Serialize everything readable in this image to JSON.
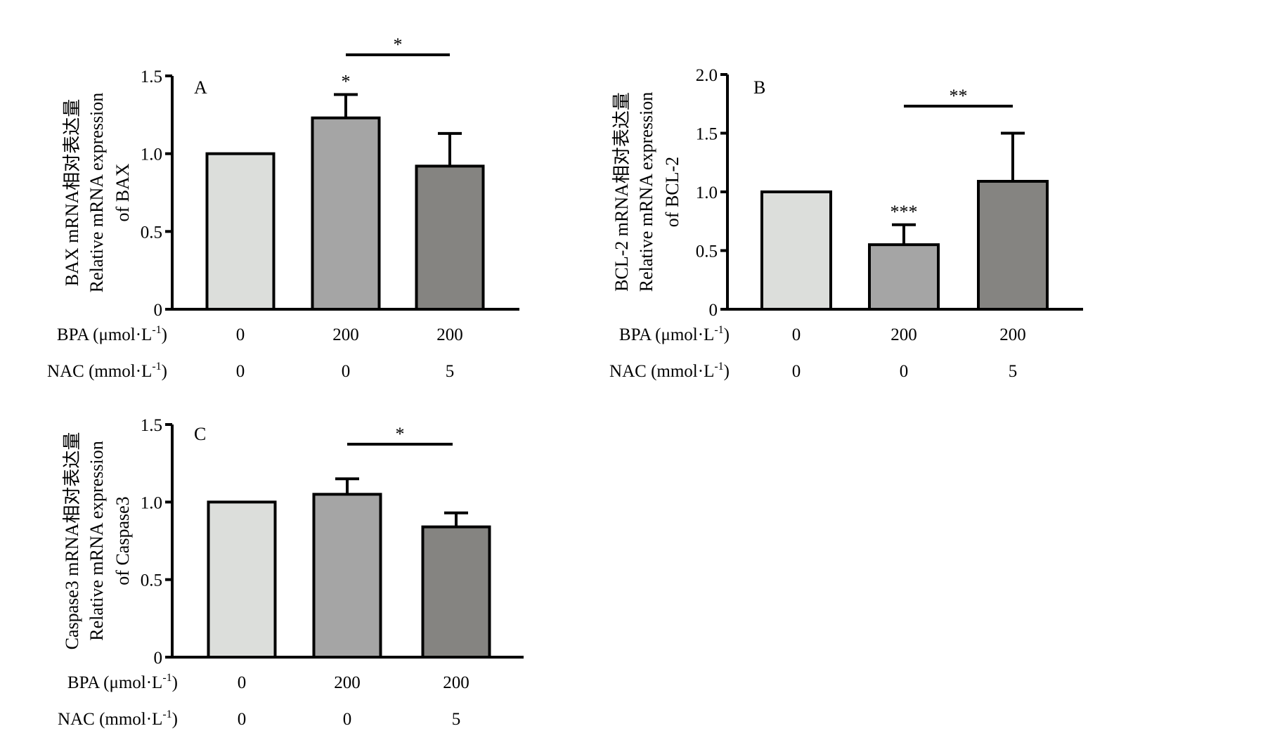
{
  "chart_data": [
    {
      "type": "bar",
      "panel_label": "A",
      "ylabel_line1": "BAX mRNA相对表达量",
      "ylabel_line2": "Relative mRNA expression",
      "ylabel_line3": "of BAX",
      "ylim": [
        0,
        1.5
      ],
      "yticks": [
        "0",
        "0.5",
        "1.0",
        "1.5"
      ],
      "ytick_values": [
        0,
        0.5,
        1.0,
        1.5
      ],
      "values": [
        1.0,
        1.23,
        0.92
      ],
      "errors": [
        0,
        0.15,
        0.21
      ],
      "colors": [
        "#dcdedb",
        "#a5a5a5",
        "#858481"
      ],
      "row1_label": "BPA (μmol·L",
      "row2_label": "NAC (mmol·L",
      "unit_sup": "-1",
      "unit_close": ")",
      "row1_values": [
        "0",
        "200",
        "200"
      ],
      "row2_values": [
        "0",
        "0",
        "5"
      ],
      "bar_marks": [
        "",
        "*",
        ""
      ],
      "bracket": {
        "from": 1,
        "to": 2,
        "label": "*"
      }
    },
    {
      "type": "bar",
      "panel_label": "B",
      "ylabel_line1": "BCL-2 mRNA相对表达量",
      "ylabel_line2": "Relative mRNA expression",
      "ylabel_line3": "of BCL-2",
      "ylim": [
        0,
        2.0
      ],
      "yticks": [
        "0",
        "0.5",
        "1.0",
        "1.5",
        "2.0"
      ],
      "ytick_values": [
        0,
        0.5,
        1.0,
        1.5,
        2.0
      ],
      "values": [
        1.0,
        0.55,
        1.09
      ],
      "errors": [
        0,
        0.17,
        0.41
      ],
      "colors": [
        "#dcdedb",
        "#a5a5a5",
        "#858481"
      ],
      "row1_label": "BPA (μmol·L",
      "row2_label": "NAC (mmol·L",
      "unit_sup": "-1",
      "unit_close": ")",
      "row1_values": [
        "0",
        "200",
        "200"
      ],
      "row2_values": [
        "0",
        "0",
        "5"
      ],
      "bar_marks": [
        "",
        "***",
        ""
      ],
      "bracket": {
        "from": 1,
        "to": 2,
        "label": "**"
      }
    },
    {
      "type": "bar",
      "panel_label": "C",
      "ylabel_line1": "Caspase3 mRNA相对表达量",
      "ylabel_line2": "Relative mRNA expression",
      "ylabel_line3": "of Caspase3",
      "ylim": [
        0,
        1.5
      ],
      "yticks": [
        "0",
        "0.5",
        "1.0",
        "1.5"
      ],
      "ytick_values": [
        0,
        0.5,
        1.0,
        1.5
      ],
      "values": [
        1.0,
        1.05,
        0.84
      ],
      "errors": [
        0,
        0.1,
        0.09
      ],
      "colors": [
        "#dcdedb",
        "#a5a5a5",
        "#858481"
      ],
      "row1_label": "BPA (μmol·L",
      "row2_label": "NAC (mmol·L",
      "unit_sup": "-1",
      "unit_close": ")",
      "row1_values": [
        "0",
        "200",
        "200"
      ],
      "row2_values": [
        "0",
        "0",
        "5"
      ],
      "bar_marks": [
        "",
        "",
        ""
      ],
      "bracket": {
        "from": 1,
        "to": 2,
        "label": "*"
      }
    }
  ]
}
